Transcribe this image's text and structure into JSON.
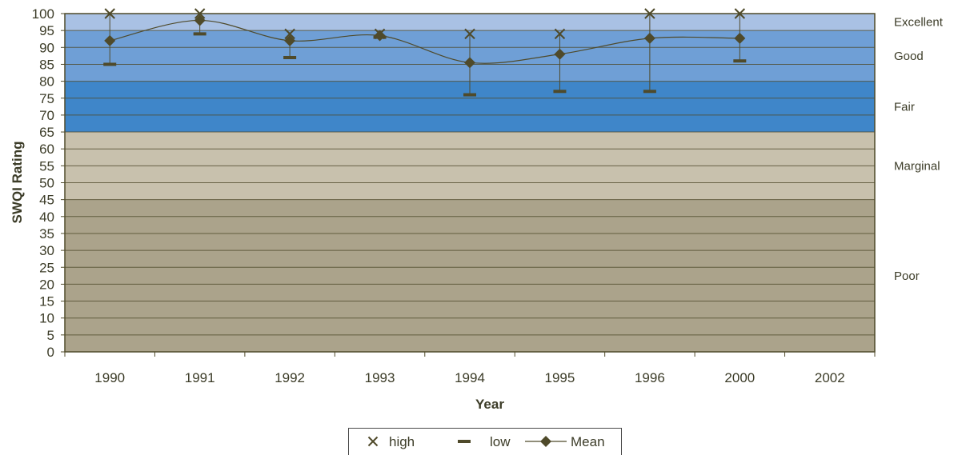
{
  "chart_data": {
    "type": "line",
    "title": "",
    "xlabel": "Year",
    "ylabel": "SWQI Rating",
    "categories": [
      "1990",
      "1991",
      "1992",
      "1993",
      "1994",
      "1995",
      "1996",
      "2000",
      "2002"
    ],
    "ylim": [
      0,
      100
    ],
    "ytick_step": 5,
    "grid": true,
    "legend_position": "bottom",
    "bands": [
      {
        "label": "Excellent",
        "from": 95,
        "to": 100,
        "color": "#a9c1e4"
      },
      {
        "label": "Good",
        "from": 80,
        "to": 95,
        "color": "#6f9fd6"
      },
      {
        "label": "Fair",
        "from": 65,
        "to": 80,
        "color": "#3f86c9"
      },
      {
        "label": "Marginal",
        "from": 45,
        "to": 65,
        "color": "#c8c1ad"
      },
      {
        "label": "Poor",
        "from": 0,
        "to": 45,
        "color": "#aba38b"
      }
    ],
    "series": [
      {
        "name": "high",
        "marker": "x",
        "values": [
          100,
          100,
          94,
          94,
          94,
          94,
          100,
          100,
          null
        ]
      },
      {
        "name": "low",
        "marker": "dash",
        "values": [
          85,
          94,
          87,
          93,
          76,
          77,
          77,
          86,
          null
        ]
      },
      {
        "name": "Mean",
        "marker": "diamond",
        "line": true,
        "values": [
          92,
          98,
          92,
          93.5,
          85.5,
          88,
          92.7,
          92.7,
          null
        ]
      }
    ],
    "colors": {
      "series": "#4f4a2a",
      "axis": "#4f4a2a",
      "grid": "#4f4a2a"
    }
  }
}
